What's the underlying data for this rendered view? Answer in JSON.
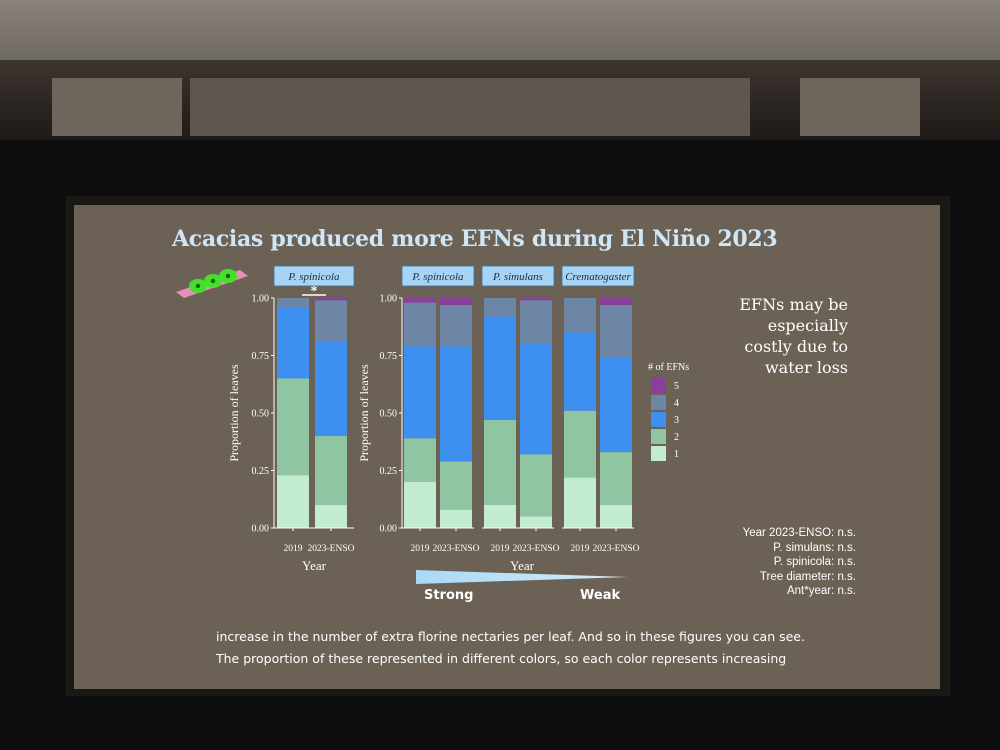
{
  "slide": {
    "title": "Acacias produced more EFNs during El Niño 2023",
    "side_note": "EFNs may be especially costly due to water loss",
    "caption_lines": [
      "increase in the number of extra florine nectaries per leaf. And so in these figures you can see.",
      "The proportion of these represented in different colors, so each color represents increasing"
    ],
    "stats": [
      "Year 2023-ENSO: n.s.",
      "P. simulans: n.s.",
      "P. spinicola: n.s.",
      "Tree diameter: n.s.",
      "Ant*year: n.s."
    ],
    "gradient_labels": {
      "strong": "Strong",
      "weak": "Weak"
    },
    "significance_marker": "*"
  },
  "colors": {
    "1": "#c3ebd0",
    "2": "#8fc5a0",
    "3": "#3d8ff0",
    "4": "#6d86a6",
    "5": "#8a3f9c"
  },
  "chart_data": [
    {
      "type": "bar",
      "stacked": true,
      "panel": "P. spinicola",
      "categories": [
        "2019",
        "2023-ENSO"
      ],
      "xlabel": "Year",
      "ylabel": "Proportion of leaves",
      "ylim": [
        0,
        1
      ],
      "yticks": [
        "0.00",
        "0.25",
        "0.50",
        "0.75",
        "1.00"
      ],
      "series": [
        {
          "name": "1",
          "values": [
            0.23,
            0.1
          ]
        },
        {
          "name": "2",
          "values": [
            0.42,
            0.3
          ]
        },
        {
          "name": "3",
          "values": [
            0.31,
            0.41
          ]
        },
        {
          "name": "4",
          "values": [
            0.04,
            0.18
          ]
        },
        {
          "name": "5",
          "values": [
            0.0,
            0.01
          ]
        }
      ]
    },
    {
      "type": "bar",
      "stacked": true,
      "facets": [
        "P. spinicola",
        "P. simulans",
        "Crematogaster"
      ],
      "categories": [
        "2019",
        "2023-ENSO"
      ],
      "xlabel": "Year",
      "ylabel": "Proportion of leaves",
      "ylim": [
        0,
        1
      ],
      "yticks": [
        "0.00",
        "0.25",
        "0.50",
        "0.75",
        "1.00"
      ],
      "legend_title": "# of EFNs",
      "legend": [
        "5",
        "4",
        "3",
        "2",
        "1"
      ],
      "facet_series": [
        [
          {
            "name": "1",
            "values": [
              0.2,
              0.08
            ]
          },
          {
            "name": "2",
            "values": [
              0.19,
              0.21
            ]
          },
          {
            "name": "3",
            "values": [
              0.4,
              0.5
            ]
          },
          {
            "name": "4",
            "values": [
              0.19,
              0.18
            ]
          },
          {
            "name": "5",
            "values": [
              0.02,
              0.03
            ]
          }
        ],
        [
          {
            "name": "1",
            "values": [
              0.1,
              0.05
            ]
          },
          {
            "name": "2",
            "values": [
              0.37,
              0.27
            ]
          },
          {
            "name": "3",
            "values": [
              0.45,
              0.48
            ]
          },
          {
            "name": "4",
            "values": [
              0.08,
              0.19
            ]
          },
          {
            "name": "5",
            "values": [
              0.0,
              0.01
            ]
          }
        ],
        [
          {
            "name": "1",
            "values": [
              0.22,
              0.1
            ]
          },
          {
            "name": "2",
            "values": [
              0.29,
              0.23
            ]
          },
          {
            "name": "3",
            "values": [
              0.34,
              0.41
            ]
          },
          {
            "name": "4",
            "values": [
              0.15,
              0.23
            ]
          },
          {
            "name": "5",
            "values": [
              0.0,
              0.03
            ]
          }
        ]
      ]
    }
  ]
}
